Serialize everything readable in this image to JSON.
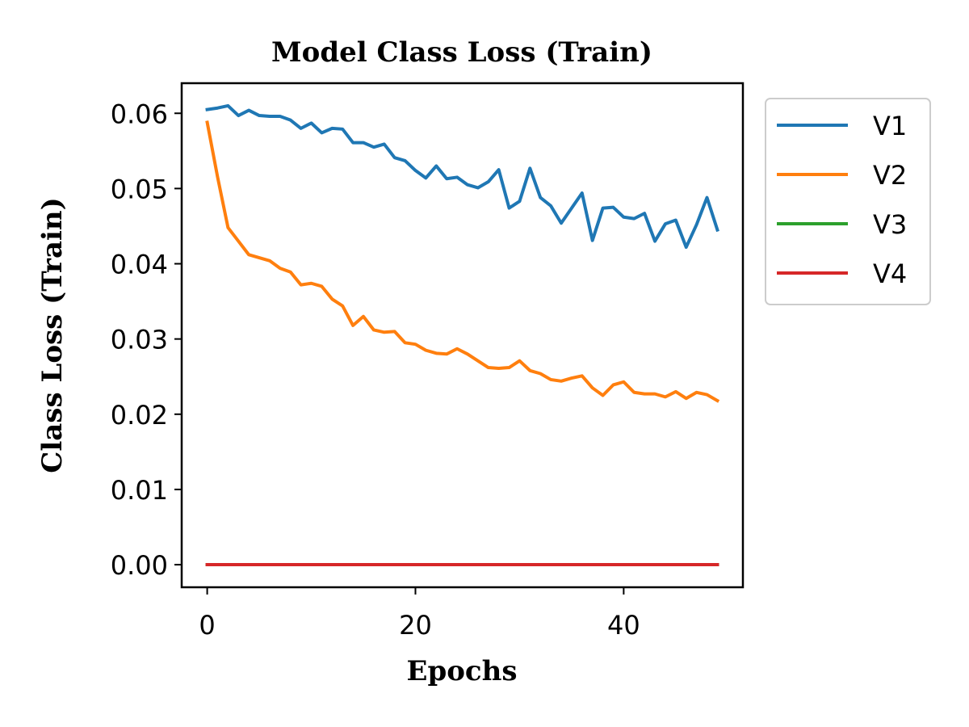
{
  "chart_data": {
    "type": "line",
    "title": "Model Class Loss (Train)",
    "xlabel": "Epochs",
    "ylabel": "Class Loss (Train)",
    "xlim": [
      -2.45,
      51.45
    ],
    "ylim": [
      -0.003,
      0.064
    ],
    "xticks": [
      0,
      20,
      40
    ],
    "yticks": [
      0.0,
      0.01,
      0.02,
      0.03,
      0.04,
      0.05,
      0.06
    ],
    "ytick_labels": [
      "0.00",
      "0.01",
      "0.02",
      "0.03",
      "0.04",
      "0.05",
      "0.06"
    ],
    "xtick_labels": [
      "0",
      "20",
      "40"
    ],
    "legend_position": "outside-top-right",
    "grid": false,
    "series": [
      {
        "name": "V1",
        "color": "#1f77b4",
        "x": [
          0,
          1,
          2,
          3,
          4,
          5,
          6,
          7,
          8,
          9,
          10,
          11,
          12,
          13,
          14,
          15,
          16,
          17,
          18,
          19,
          20,
          21,
          22,
          23,
          24,
          25,
          26,
          27,
          28,
          29,
          30,
          31,
          32,
          33,
          34,
          35,
          36,
          37,
          38,
          39,
          40,
          41,
          42,
          43,
          44,
          45,
          46,
          47,
          48,
          49
        ],
        "y": [
          0.0605,
          0.0607,
          0.061,
          0.0597,
          0.0604,
          0.0597,
          0.0596,
          0.0596,
          0.0591,
          0.058,
          0.0587,
          0.0574,
          0.058,
          0.0579,
          0.0561,
          0.0561,
          0.0555,
          0.0559,
          0.0541,
          0.0537,
          0.0524,
          0.0514,
          0.053,
          0.0513,
          0.0515,
          0.0505,
          0.0501,
          0.0509,
          0.0525,
          0.0474,
          0.0483,
          0.0527,
          0.0488,
          0.0477,
          0.0454,
          0.0474,
          0.0494,
          0.0431,
          0.0474,
          0.0475,
          0.0462,
          0.046,
          0.0467,
          0.043,
          0.0453,
          0.0458,
          0.0422,
          0.0452,
          0.0488,
          0.0445
        ]
      },
      {
        "name": "V2",
        "color": "#ff7f0e",
        "x": [
          0,
          1,
          2,
          3,
          4,
          5,
          6,
          7,
          8,
          9,
          10,
          11,
          12,
          13,
          14,
          15,
          16,
          17,
          18,
          19,
          20,
          21,
          22,
          23,
          24,
          25,
          26,
          27,
          28,
          29,
          30,
          31,
          32,
          33,
          34,
          35,
          36,
          37,
          38,
          39,
          40,
          41,
          42,
          43,
          44,
          45,
          46,
          47,
          48,
          49
        ],
        "y": [
          0.0588,
          0.0515,
          0.0448,
          0.043,
          0.0412,
          0.0408,
          0.0404,
          0.0394,
          0.0389,
          0.0372,
          0.0374,
          0.037,
          0.0353,
          0.0344,
          0.0318,
          0.033,
          0.0312,
          0.0309,
          0.031,
          0.0295,
          0.0293,
          0.0285,
          0.0281,
          0.028,
          0.0287,
          0.028,
          0.0271,
          0.0262,
          0.0261,
          0.0262,
          0.0271,
          0.0258,
          0.0254,
          0.0246,
          0.0244,
          0.0248,
          0.0251,
          0.0235,
          0.0225,
          0.0239,
          0.0243,
          0.0229,
          0.0227,
          0.0227,
          0.0223,
          0.023,
          0.0221,
          0.0229,
          0.0226,
          0.0218
        ]
      },
      {
        "name": "V3",
        "color": "#2ca02c",
        "x": [
          0,
          49
        ],
        "y": [
          0.0,
          0.0
        ]
      },
      {
        "name": "V4",
        "color": "#d62728",
        "x": [
          0,
          49
        ],
        "y": [
          0.0,
          0.0
        ]
      }
    ]
  }
}
